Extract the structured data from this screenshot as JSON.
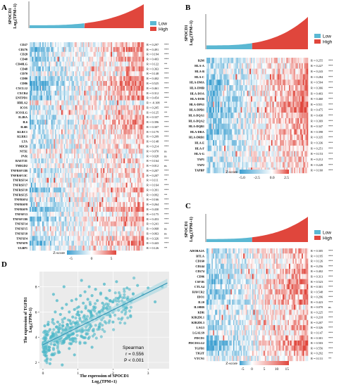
{
  "chart_data": [
    {
      "panel": "A",
      "type": "heatmap",
      "ylabel_line1": "SPOCD1",
      "ylabel_line2": "Log₂(TPM+1)",
      "legend": [
        "Low",
        "High"
      ],
      "colors": {
        "low": "#5bb8d3",
        "high": "#e0463c",
        "heat_low": "#3d9fd0",
        "heat_high": "#e0463c"
      },
      "colorbar_title": "Z-score",
      "colorbar_ticks": [
        "-5",
        "0",
        "5"
      ],
      "genes": [
        "CD27",
        "CD276",
        "CD28",
        "CD40",
        "CD40LG",
        "CD48",
        "CD70",
        "CD80",
        "CD86",
        "CXCL12",
        "CXCR4",
        "ENTPD1",
        "HHLA2",
        "ICOS",
        "ICOSLG",
        "IL2RA",
        "IL6",
        "IL6R",
        "KLRC1",
        "KLRK1",
        "LTA",
        "MICB",
        "NT5E",
        "PVR",
        "RAET1E",
        "TMIGD2",
        "TNFRSF13B",
        "TNFRSF13C",
        "TNFRSF14",
        "TNFRSF17",
        "TNFRSF18",
        "TNFRSF25",
        "TNFRSF4",
        "TNFRSF8",
        "TNFRSF9",
        "TNFSF13",
        "TNFSF13B",
        "TNFSF14",
        "TNFSF15",
        "TNFSF18",
        "TNFSF4",
        "TNFSF9",
        "ULBP1"
      ],
      "r_text": [
        "R = 0.297",
        "R = 0.491",
        "R = 0.194",
        "R = 0.403",
        "R = 0.122",
        "R = 0.363",
        "R = 0.148",
        "R = 0.402",
        "R = 0.525",
        "R = 0.461",
        "R = 0.312",
        "R = 0.454",
        "R = -0.108",
        "R = 0.205",
        "R = 0.125",
        "R = 0.337",
        "R = 0.396",
        "R = 0.307",
        "R = 0.179",
        "R = 0.209",
        "R = 0.148",
        "R = 0.214",
        "R = 0.070",
        "R = 0.028",
        "R = 0.164",
        "R = 0.012",
        "R = 0.207",
        "R = 0.207",
        "R = 0.111",
        "R = 0.164",
        "R = 0.391",
        "R = 0.092",
        "R = 0.166",
        "R = 0.264",
        "R = 0.430",
        "R = 0.175",
        "R = 0.453",
        "R = 0.241",
        "R = 0.068",
        "R = 0.063",
        "R = 0.326",
        "R = 0.443",
        "R = 0.126"
      ],
      "sig": [
        "***",
        "***",
        "***",
        "***",
        "**",
        "***",
        "***",
        "***",
        "***",
        "***",
        "***",
        "***",
        "**",
        "***",
        "**",
        "***",
        "***",
        "***",
        "***",
        "***",
        "***",
        "***",
        "ns",
        "ns",
        "***",
        "ns",
        "***",
        "***",
        "**",
        "***",
        "***",
        "**",
        "***",
        "***",
        "***",
        "***",
        "***",
        "***",
        "ns",
        "ns",
        "***",
        "***",
        "**"
      ]
    },
    {
      "panel": "B",
      "type": "heatmap",
      "ylabel_line1": "SPOCD1",
      "ylabel_line2": "Log₂(TPM+1)",
      "legend": [
        "Low",
        "High"
      ],
      "colorbar_title": "Z-score",
      "colorbar_ticks": [
        "-5.0",
        "-2.5",
        "0.0",
        "2.5"
      ],
      "genes": [
        "B2M",
        "HLA-A",
        "HLA-B",
        "HLA-C",
        "HLA-DMA",
        "HLA-DMB",
        "HLA-DOA",
        "HLA-DOB",
        "HLA-DPA1",
        "HLA-DPB1",
        "HLA-DQA1",
        "HLA-DQA2",
        "HLA-DQB1",
        "HLA-DRA",
        "HLA-DRB1",
        "HLA-E",
        "HLA-F",
        "HLA-G",
        "TAP1",
        "TAP2",
        "TAPBP"
      ],
      "r_text": [
        "R = 0.255",
        "R = 0.227",
        "R = 0.243",
        "R = 0.284",
        "R = 0.504",
        "R = 0.366",
        "R = 0.403",
        "R = 0.460",
        "R = 0.511",
        "R = 0.475",
        "R = 0.430",
        "R = 0.369",
        "R = 0.347",
        "R = 0.398",
        "R = 0.335",
        "R = 0.336",
        "R = 0.251",
        "R = 0.153",
        "R = 0.212",
        "R = 0.228",
        "R = 0.160"
      ],
      "sig": [
        "***",
        "***",
        "***",
        "***",
        "***",
        "***",
        "***",
        "***",
        "***",
        "***",
        "***",
        "***",
        "***",
        "***",
        "***",
        "***",
        "***",
        "***",
        "***",
        "***",
        "***"
      ]
    },
    {
      "panel": "C",
      "type": "heatmap",
      "ylabel_line1": "SPOCD1",
      "ylabel_line2": "Log₂(TPM+1)",
      "legend": [
        "Low",
        "High"
      ],
      "colorbar_title": "Z-score",
      "colorbar_ticks": [
        "-5",
        "0",
        "5",
        "10",
        "15"
      ],
      "genes": [
        "ADORA2A",
        "BTLA",
        "CD160",
        "CD244",
        "CD274",
        "CD96",
        "CSF1R",
        "CTLA4",
        "HAVCR2",
        "IDO1",
        "IL10",
        "IL10RB",
        "KDR",
        "KIR2DL1",
        "KIR2DL3",
        "LAG3",
        "LGALS9",
        "PDCD1",
        "PDCD1LG2",
        "TGFB1",
        "TIGIT",
        "VTCN1"
      ],
      "r_text": [
        "R = 0.305",
        "R = 0.195",
        "R = 0.126",
        "R = 0.256",
        "R = 0.402",
        "R = 0.313",
        "R = 0.523",
        "R = 0.301",
        "R = 0.548",
        "R = 0.296",
        "R = 0.423",
        "R = 0.070",
        "R = 0.225",
        "R = 0.218",
        "R = 0.207",
        "R = 0.326",
        "R = 0.147",
        "R = 0.301",
        "R = 0.503",
        "R = 0.556",
        "R = 0.292",
        "R = 0.131"
      ],
      "sig": [
        "***",
        "***",
        "***",
        "***",
        "***",
        "***",
        "***",
        "***",
        "***",
        "***",
        "***",
        "ns",
        "***",
        "***",
        "***",
        "***",
        "***",
        "***",
        "***",
        "***",
        "***",
        "**"
      ]
    },
    {
      "panel": "D",
      "type": "scatter",
      "xlabel_line1": "The expression of SPOCD1",
      "xlabel_line2": "Log₂(TPM+1)",
      "ylabel_line1": "The expression of TGFB1",
      "ylabel_line2": "Log₂(TPM+1)",
      "xlim": [
        -0.1,
        3.6
      ],
      "ylim": [
        1.5,
        9.2
      ],
      "xticks": [
        0,
        1,
        2,
        3
      ],
      "yticks": [
        2,
        4,
        6,
        8
      ],
      "point_color": "#4db8c8",
      "method": "Spearman",
      "r_text": "r = 0.556",
      "p_text": "P < 0.001",
      "fit": {
        "x0": 0.0,
        "y0": 3.4,
        "x1": 3.55,
        "y1": 8.3
      },
      "points": [
        [
          0.05,
          2.9
        ],
        [
          0.08,
          3.6
        ],
        [
          0.1,
          4.2
        ],
        [
          0.12,
          2.3
        ],
        [
          0.15,
          5.0
        ],
        [
          0.18,
          3.2
        ],
        [
          0.2,
          4.6
        ],
        [
          0.22,
          3.9
        ],
        [
          0.25,
          2.6
        ],
        [
          0.28,
          5.4
        ],
        [
          0.3,
          4.1
        ],
        [
          0.32,
          3.4
        ],
        [
          0.35,
          6.0
        ],
        [
          0.38,
          4.8
        ],
        [
          0.4,
          3.7
        ],
        [
          0.42,
          5.2
        ],
        [
          0.45,
          4.4
        ],
        [
          0.47,
          2.8
        ],
        [
          0.5,
          5.8
        ],
        [
          0.52,
          4.0
        ],
        [
          0.55,
          6.3
        ],
        [
          0.57,
          4.9
        ],
        [
          0.6,
          3.6
        ],
        [
          0.62,
          5.5
        ],
        [
          0.65,
          4.6
        ],
        [
          0.67,
          6.6
        ],
        [
          0.7,
          5.0
        ],
        [
          0.72,
          4.2
        ],
        [
          0.75,
          6.0
        ],
        [
          0.77,
          5.3
        ],
        [
          0.8,
          4.7
        ],
        [
          0.82,
          6.9
        ],
        [
          0.85,
          5.6
        ],
        [
          0.87,
          4.3
        ],
        [
          0.9,
          6.2
        ],
        [
          0.92,
          5.1
        ],
        [
          0.95,
          7.0
        ],
        [
          0.97,
          5.8
        ],
        [
          1.0,
          4.9
        ],
        [
          1.02,
          6.4
        ],
        [
          1.05,
          5.5
        ],
        [
          1.07,
          7.3
        ],
        [
          1.1,
          6.0
        ],
        [
          1.12,
          5.2
        ],
        [
          1.15,
          6.7
        ],
        [
          1.18,
          5.7
        ],
        [
          1.2,
          7.6
        ],
        [
          1.22,
          6.3
        ],
        [
          1.25,
          5.4
        ],
        [
          1.28,
          7.0
        ],
        [
          1.3,
          6.1
        ],
        [
          1.32,
          8.0
        ],
        [
          1.35,
          6.6
        ],
        [
          1.38,
          5.8
        ],
        [
          1.4,
          7.3
        ],
        [
          1.45,
          6.4
        ],
        [
          1.5,
          7.8
        ],
        [
          1.55,
          6.9
        ],
        [
          1.6,
          6.0
        ],
        [
          1.65,
          7.5
        ],
        [
          1.7,
          6.7
        ],
        [
          1.75,
          8.2
        ],
        [
          1.8,
          7.1
        ],
        [
          1.85,
          6.2
        ],
        [
          1.9,
          7.7
        ],
        [
          2.0,
          6.8
        ],
        [
          2.1,
          8.4
        ],
        [
          2.2,
          7.2
        ],
        [
          2.3,
          6.5
        ],
        [
          2.4,
          7.9
        ],
        [
          2.55,
          7.0
        ],
        [
          2.7,
          8.1
        ],
        [
          2.85,
          7.4
        ],
        [
          3.0,
          7.9
        ],
        [
          3.2,
          6.8
        ],
        [
          3.4,
          8.0
        ],
        [
          0.3,
          7.4
        ],
        [
          0.6,
          8.0
        ],
        [
          0.2,
          1.9
        ],
        [
          0.9,
          2.6
        ],
        [
          1.4,
          3.2
        ],
        [
          0.4,
          6.9
        ],
        [
          0.05,
          4.9
        ],
        [
          1.1,
          8.5
        ],
        [
          0.75,
          3.1
        ],
        [
          1.6,
          4.8
        ],
        [
          2.0,
          5.2
        ],
        [
          0.55,
          1.8
        ],
        [
          1.3,
          3.9
        ],
        [
          2.5,
          5.7
        ]
      ]
    }
  ]
}
